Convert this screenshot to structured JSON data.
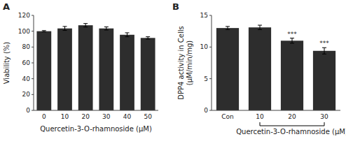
{
  "chart_data": [
    {
      "type": "bar",
      "title": "A",
      "xlabel": "Quercetin-3-O-rhamnoside (μM)",
      "ylabel": "Viability (%)",
      "categories": [
        "0",
        "10",
        "20",
        "30",
        "40",
        "50"
      ],
      "values": [
        100.0,
        103.5,
        107.5,
        103.5,
        95.5,
        91.5
      ],
      "errors": [
        0.8,
        2.5,
        2.2,
        2.0,
        2.5,
        1.5
      ],
      "color": "#2d2d2d",
      "ylim": [
        0,
        120
      ],
      "yticks": [
        0,
        20,
        40,
        60,
        80,
        100,
        120
      ]
    },
    {
      "type": "bar",
      "title": "B",
      "ylabel": "DPP4 activity in Cells\n(μM/min/mg)",
      "categories": [
        "Con",
        "10",
        "20",
        "30"
      ],
      "values": [
        13.0,
        13.1,
        11.0,
        9.4
      ],
      "errors": [
        0.25,
        0.35,
        0.4,
        0.5
      ],
      "color": "#2d2d2d",
      "ylim": [
        0,
        15
      ],
      "yticks": [
        0,
        5,
        10,
        15
      ],
      "annotations": [
        {
          "text": "***",
          "x": "20"
        },
        {
          "text": "***",
          "x": "30"
        },
        {
          "text": "Quercetin-3-O-rhamnoside (μM)",
          "from": "10",
          "to": "30"
        }
      ]
    }
  ]
}
